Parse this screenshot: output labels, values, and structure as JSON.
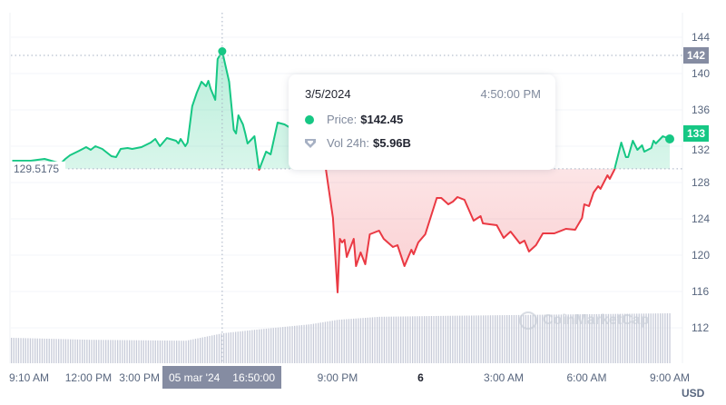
{
  "chart_data": {
    "type": "line",
    "currency_label": "USD",
    "baseline_label": "129.5175",
    "baseline_value": 129.5175,
    "ylim": [
      110,
      146
    ],
    "y_ticks": [
      112,
      116,
      120,
      124,
      128,
      132,
      136,
      140,
      144
    ],
    "x_range": [
      "2024-03-05T09:10",
      "2024-03-06T09:00"
    ],
    "x_ticks": [
      {
        "label": "9:10 AM",
        "time": "2024-03-05T09:10",
        "bold": false
      },
      {
        "label": "12:00 PM",
        "time": "2024-03-05T12:00",
        "bold": false
      },
      {
        "label": "3:00 PM",
        "time": "2024-03-05T15:00",
        "bold": false
      },
      {
        "label": "9:00 PM",
        "time": "2024-03-05T21:00",
        "bold": false
      },
      {
        "label": "6",
        "time": "2024-03-06T00:00",
        "bold": true
      },
      {
        "label": "3:00 AM",
        "time": "2024-03-06T03:00",
        "bold": false
      },
      {
        "label": "6:00 AM",
        "time": "2024-03-06T06:00",
        "bold": false
      },
      {
        "label": "9:00 AM",
        "time": "2024-03-06T09:00",
        "bold": false
      }
    ],
    "colors": {
      "up": "#16c784",
      "down": "#ea3943",
      "volume": "#c7cbd8",
      "crosshair_badge": "#858ca2"
    },
    "grid": true,
    "price": [
      [
        "2024-03-05T09:15",
        130.4
      ],
      [
        "2024-03-05T09:55",
        130.4
      ],
      [
        "2024-03-05T10:25",
        130.6
      ],
      [
        "2024-03-05T11:00",
        130.1
      ],
      [
        "2024-03-05T11:10",
        130.6
      ],
      [
        "2024-03-05T11:20",
        131.0
      ],
      [
        "2024-03-05T11:40",
        131.5
      ],
      [
        "2024-03-05T11:55",
        131.9
      ],
      [
        "2024-03-05T12:05",
        131.6
      ],
      [
        "2024-03-05T12:15",
        132.0
      ],
      [
        "2024-03-05T12:30",
        131.7
      ],
      [
        "2024-03-05T12:50",
        130.9
      ],
      [
        "2024-03-05T13:00",
        130.8
      ],
      [
        "2024-03-05T13:10",
        131.7
      ],
      [
        "2024-03-05T13:25",
        131.8
      ],
      [
        "2024-03-05T13:35",
        131.7
      ],
      [
        "2024-03-05T13:55",
        131.9
      ],
      [
        "2024-03-05T14:15",
        132.4
      ],
      [
        "2024-03-05T14:25",
        132.8
      ],
      [
        "2024-03-05T14:35",
        132.0
      ],
      [
        "2024-03-05T14:50",
        132.9
      ],
      [
        "2024-03-05T15:10",
        132.6
      ],
      [
        "2024-03-05T15:15",
        132.3
      ],
      [
        "2024-03-05T15:20",
        132.8
      ],
      [
        "2024-03-05T15:30",
        132.0
      ],
      [
        "2024-03-05T15:35",
        132.4
      ],
      [
        "2024-03-05T15:45",
        136.4
      ],
      [
        "2024-03-05T15:55",
        137.9
      ],
      [
        "2024-03-05T16:05",
        139.1
      ],
      [
        "2024-03-05T16:15",
        138.6
      ],
      [
        "2024-03-05T16:20",
        139.2
      ],
      [
        "2024-03-05T16:25",
        138.3
      ],
      [
        "2024-03-05T16:35",
        137.1
      ],
      [
        "2024-03-05T16:40",
        141.6
      ],
      [
        "2024-03-05T16:50",
        142.45
      ],
      [
        "2024-03-05T17:05",
        139.1
      ],
      [
        "2024-03-05T17:15",
        133.8
      ],
      [
        "2024-03-05T17:20",
        133.4
      ],
      [
        "2024-03-05T17:25",
        135.4
      ],
      [
        "2024-03-05T17:35",
        134.4
      ],
      [
        "2024-03-05T17:40",
        133.4
      ],
      [
        "2024-03-05T17:45",
        132.3
      ],
      [
        "2024-03-05T18:00",
        133.1
      ],
      [
        "2024-03-05T18:10",
        129.4
      ],
      [
        "2024-03-05T18:25",
        131.4
      ],
      [
        "2024-03-05T18:35",
        131.1
      ],
      [
        "2024-03-05T18:50",
        134.6
      ],
      [
        "2024-03-05T19:05",
        134.4
      ],
      [
        "2024-03-05T19:15",
        134.1
      ],
      [
        "2024-03-05T19:35",
        133.9
      ],
      [
        "2024-03-05T20:05",
        133.1
      ],
      [
        "2024-03-05T20:25",
        131.6
      ],
      [
        "2024-03-05T20:35",
        129.4
      ],
      [
        "2024-03-05T20:40",
        127.6
      ],
      [
        "2024-03-05T20:50",
        124.1
      ],
      [
        "2024-03-05T21:00",
        115.9
      ],
      [
        "2024-03-05T21:05",
        121.8
      ],
      [
        "2024-03-05T21:10",
        121.4
      ],
      [
        "2024-03-05T21:15",
        121.7
      ],
      [
        "2024-03-05T21:20",
        119.8
      ],
      [
        "2024-03-05T21:35",
        121.8
      ],
      [
        "2024-03-05T21:40",
        118.8
      ],
      [
        "2024-03-05T21:50",
        120.3
      ],
      [
        "2024-03-05T22:00",
        119.0
      ],
      [
        "2024-03-05T22:10",
        122.3
      ],
      [
        "2024-03-05T22:20",
        122.5
      ],
      [
        "2024-03-05T22:30",
        122.7
      ],
      [
        "2024-03-05T22:40",
        121.8
      ],
      [
        "2024-03-05T23:00",
        120.9
      ],
      [
        "2024-03-05T23:10",
        121.1
      ],
      [
        "2024-03-05T23:25",
        118.8
      ],
      [
        "2024-03-05T23:40",
        120.6
      ],
      [
        "2024-03-05T23:45",
        120.1
      ],
      [
        "2024-03-05T23:55",
        121.4
      ],
      [
        "2024-03-06T00:10",
        122.3
      ],
      [
        "2024-03-06T00:35",
        126.3
      ],
      [
        "2024-03-06T00:45",
        126.3
      ],
      [
        "2024-03-06T01:00",
        125.6
      ],
      [
        "2024-03-06T01:10",
        125.9
      ],
      [
        "2024-03-06T01:20",
        126.4
      ],
      [
        "2024-03-06T01:35",
        126.1
      ],
      [
        "2024-03-06T01:55",
        123.8
      ],
      [
        "2024-03-06T02:10",
        124.3
      ],
      [
        "2024-03-06T02:15",
        123.5
      ],
      [
        "2024-03-06T02:30",
        123.4
      ],
      [
        "2024-03-06T02:45",
        123.3
      ],
      [
        "2024-03-06T03:00",
        121.9
      ],
      [
        "2024-03-06T03:15",
        122.6
      ],
      [
        "2024-03-06T03:35",
        121.3
      ],
      [
        "2024-03-06T03:45",
        121.6
      ],
      [
        "2024-03-06T03:55",
        120.4
      ],
      [
        "2024-03-06T04:10",
        121.1
      ],
      [
        "2024-03-06T04:25",
        122.4
      ],
      [
        "2024-03-06T04:50",
        122.4
      ],
      [
        "2024-03-06T05:15",
        122.9
      ],
      [
        "2024-03-06T05:35",
        122.8
      ],
      [
        "2024-03-06T05:50",
        124.1
      ],
      [
        "2024-03-06T05:55",
        125.6
      ],
      [
        "2024-03-06T06:05",
        125.4
      ],
      [
        "2024-03-06T06:15",
        126.9
      ],
      [
        "2024-03-06T06:25",
        127.6
      ],
      [
        "2024-03-06T06:30",
        127.3
      ],
      [
        "2024-03-06T06:45",
        128.8
      ],
      [
        "2024-03-06T06:50",
        128.4
      ],
      [
        "2024-03-06T07:00",
        129.4
      ],
      [
        "2024-03-06T07:15",
        132.4
      ],
      [
        "2024-03-06T07:25",
        130.8
      ],
      [
        "2024-03-06T07:30",
        130.8
      ],
      [
        "2024-03-06T07:40",
        132.6
      ],
      [
        "2024-03-06T07:50",
        131.6
      ],
      [
        "2024-03-06T08:00",
        132.1
      ],
      [
        "2024-03-06T08:05",
        131.4
      ],
      [
        "2024-03-06T08:20",
        131.8
      ],
      [
        "2024-03-06T08:25",
        132.6
      ],
      [
        "2024-03-06T08:30",
        132.3
      ],
      [
        "2024-03-06T08:45",
        133.1
      ],
      [
        "2024-03-06T09:00",
        132.8
      ]
    ],
    "volume_relative": [
      [
        "2024-03-05T09:10",
        0.51
      ],
      [
        "2024-03-05T12:00",
        0.47
      ],
      [
        "2024-03-05T15:30",
        0.45
      ],
      [
        "2024-03-05T16:50",
        0.6
      ],
      [
        "2024-03-05T18:00",
        0.67
      ],
      [
        "2024-03-05T20:00",
        0.78
      ],
      [
        "2024-03-05T21:00",
        0.87
      ],
      [
        "2024-03-05T22:30",
        0.93
      ],
      [
        "2024-03-06T01:00",
        0.95
      ],
      [
        "2024-03-06T09:00",
        1.0
      ]
    ],
    "current_price_badge": "133",
    "crosshair": {
      "price_badge": "142",
      "date_label": "05 mar '24",
      "time_label": "16:50:00",
      "time": "2024-03-05T16:50",
      "price": 142.45
    }
  },
  "tooltip": {
    "date": "3/5/2024",
    "time": "4:50:00 PM",
    "price_label": "Price:",
    "price_value": "$142.45",
    "volume_label": "Vol 24h:",
    "volume_value": "$5.96B"
  },
  "watermark": "CoinMarketCap"
}
